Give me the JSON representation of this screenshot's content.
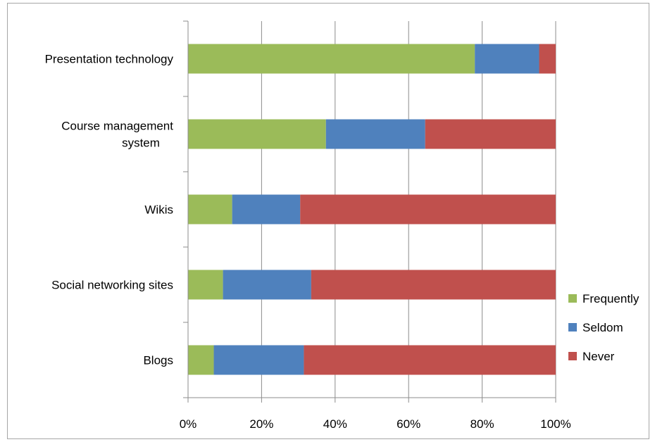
{
  "chart_data": {
    "type": "bar",
    "orientation": "horizontal",
    "stacked": "percent",
    "title": "",
    "xlabel": "",
    "ylabel": "",
    "categories": [
      [
        "Presentation technology"
      ],
      [
        "Course management",
        "system"
      ],
      [
        "Wikis"
      ],
      [
        "Social networking sites"
      ],
      [
        "Blogs"
      ]
    ],
    "series": [
      {
        "name": "Frequently",
        "color": "#9bbb59",
        "values": [
          78,
          37.5,
          12,
          9.5,
          7
        ]
      },
      {
        "name": "Seldom",
        "color": "#4f81bd",
        "values": [
          17.5,
          27,
          18.5,
          24,
          24.5
        ]
      },
      {
        "name": "Never",
        "color": "#c0504d",
        "values": [
          4.5,
          35.5,
          69.5,
          66.5,
          68.5
        ]
      }
    ],
    "xlim": [
      0,
      100
    ],
    "xticks": [
      "0%",
      "20%",
      "40%",
      "60%",
      "80%",
      "100%"
    ],
    "grid": true,
    "legend": "right"
  }
}
